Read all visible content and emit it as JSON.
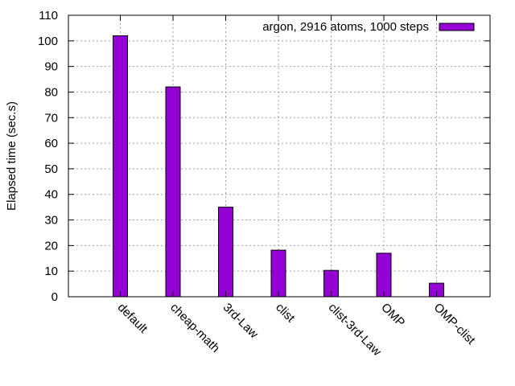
{
  "chart_data": {
    "type": "bar",
    "ylabel": "Elapsed time (sec.s)",
    "ylim": [
      0,
      110
    ],
    "yticks": [
      0,
      10,
      20,
      30,
      40,
      50,
      60,
      70,
      80,
      90,
      100,
      110
    ],
    "grid": true,
    "legend_position": "top-right",
    "bar_color": "#9400d3",
    "categories": [
      "default",
      "cheap-math",
      "3rd-Law",
      "clist",
      "clist-3rd-Law",
      "OMP",
      "OMP-clist"
    ],
    "series": [
      {
        "name": "argon, 2916 atoms, 1000 steps",
        "values": [
          102,
          82,
          35,
          18.2,
          10.3,
          17,
          5.3
        ]
      }
    ]
  }
}
